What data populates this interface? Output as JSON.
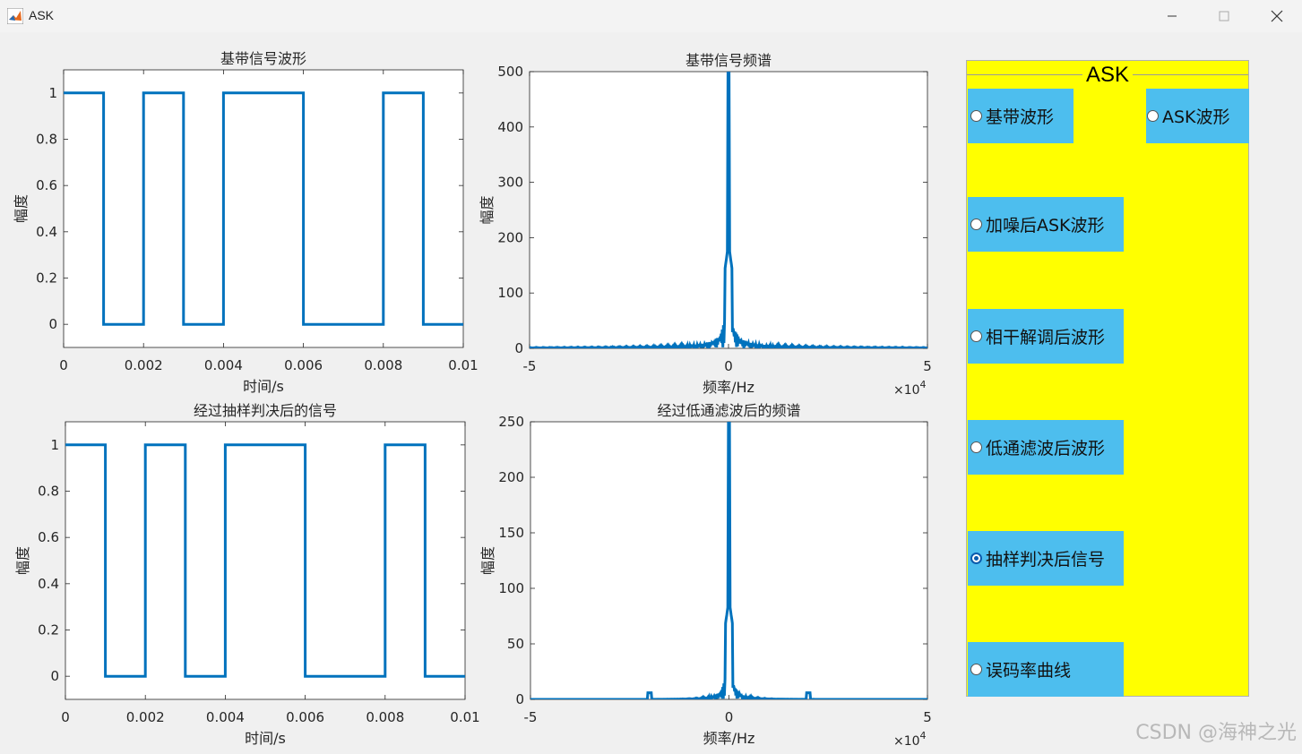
{
  "window": {
    "title": "ASK",
    "minimize_icon": "minimize-icon",
    "maximize_icon": "maximize-icon",
    "close_icon": "close-icon",
    "app_icon": "matlab-icon"
  },
  "panel": {
    "title": "ASK",
    "background": "#ffff00",
    "button_color": "#4dbeee",
    "options": [
      {
        "label": "基带波形",
        "selected": false
      },
      {
        "label": "ASK波形",
        "selected": false
      },
      {
        "label": "加噪后ASK波形",
        "selected": false
      },
      {
        "label": "相干解调后波形",
        "selected": false
      },
      {
        "label": "低通滤波后波形",
        "selected": false
      },
      {
        "label": "抽样判决后信号",
        "selected": true
      },
      {
        "label": "误码率曲线",
        "selected": false
      }
    ]
  },
  "watermark": "CSDN @海神之光",
  "chart_data": [
    {
      "type": "line",
      "title": "基带信号波形",
      "xlabel": "时间/s",
      "ylabel": "幅度",
      "xlim": [
        0,
        0.01
      ],
      "ylim": [
        -0.1,
        1.1
      ],
      "xticks": [
        "0",
        "0.002",
        "0.004",
        "0.006",
        "0.008",
        "0.01"
      ],
      "yticks": [
        "0",
        "0.2",
        "0.4",
        "0.6",
        "0.8",
        "1"
      ],
      "color": "#0072bd",
      "bits": [
        1,
        0,
        1,
        0,
        1,
        1,
        0,
        0,
        1,
        0
      ]
    },
    {
      "type": "line",
      "title": "基带信号频谱",
      "xlabel": "频率/Hz",
      "ylabel": "幅度",
      "x_exponent": "×10",
      "x_exponent_power": "4",
      "xlim": [
        -5,
        5
      ],
      "ylim": [
        0,
        500
      ],
      "xticks": [
        "-5",
        "0",
        "5"
      ],
      "yticks": [
        "0",
        "100",
        "200",
        "300",
        "400",
        "500"
      ],
      "color": "#0072bd",
      "peak": 500,
      "side_peak": 190,
      "sidelobe": 60
    },
    {
      "type": "line",
      "title": "经过抽样判决后的信号",
      "xlabel": "时间/s",
      "ylabel": "幅度",
      "xlim": [
        0,
        0.01
      ],
      "ylim": [
        -0.1,
        1.1
      ],
      "xticks": [
        "0",
        "0.002",
        "0.004",
        "0.006",
        "0.008",
        "0.01"
      ],
      "yticks": [
        "0",
        "0.2",
        "0.4",
        "0.6",
        "0.8",
        "1"
      ],
      "color": "#0072bd",
      "bits": [
        1,
        0,
        1,
        0,
        1,
        1,
        0,
        0,
        1,
        0
      ]
    },
    {
      "type": "line",
      "title": "经过低通滤波后的频谱",
      "xlabel": "频率/Hz",
      "ylabel": "幅度",
      "x_exponent": "×10",
      "x_exponent_power": "4",
      "xlim": [
        -5,
        5
      ],
      "ylim": [
        0,
        250
      ],
      "xticks": [
        "-5",
        "0",
        "5"
      ],
      "yticks": [
        "0",
        "50",
        "100",
        "150",
        "200",
        "250"
      ],
      "color": "#0072bd",
      "peak": 250,
      "side_peak": 90,
      "sidelobe": 25
    }
  ]
}
